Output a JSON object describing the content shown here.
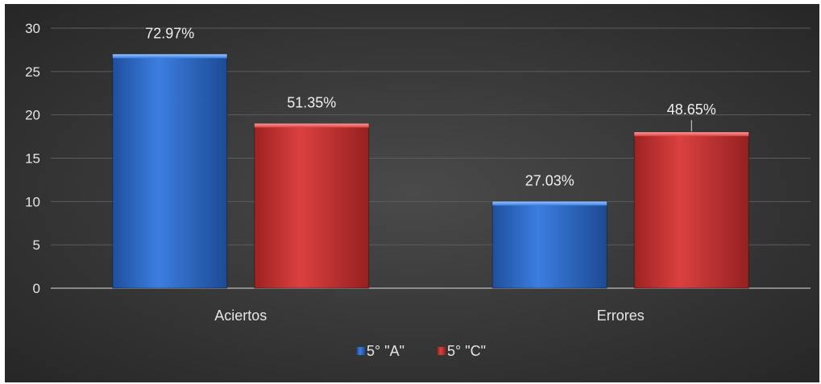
{
  "chart_data": {
    "type": "bar",
    "categories": [
      "Aciertos",
      "Errores"
    ],
    "series": [
      {
        "name": "5° \"A\"",
        "values": [
          27,
          10
        ],
        "labels": [
          "72.97%",
          "27.03%"
        ],
        "color": "#2f6fd0"
      },
      {
        "name": "5° \"C\"",
        "values": [
          19,
          18
        ],
        "labels": [
          "51.35%",
          "48.65%"
        ],
        "color": "#cc3232"
      }
    ],
    "ylim": [
      0,
      30
    ],
    "yticks": [
      0,
      5,
      10,
      15,
      20,
      25,
      30
    ],
    "grid": true,
    "legend": "bottom-center",
    "background": "#3a3a3a",
    "text_color": "#e6e6e6"
  }
}
